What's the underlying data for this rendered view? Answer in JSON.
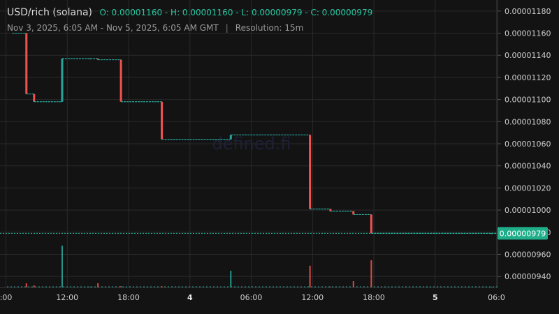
{
  "header": {
    "symbol": "USD/rich (solana)",
    "ohlc": "O: 0.00001160 - H: 0.00001160 - L: 0.00000979 - C: 0.00000979",
    "range": "Nov 3, 2025, 6:05 AM - Nov 5, 2025, 6:05 AM GMT",
    "separator": "|",
    "resolution": "Resolution: 15m"
  },
  "watermark": "defined.fi",
  "colors": {
    "up": "#26a69a",
    "down": "#ef5350",
    "accent": "#26c6a0",
    "background": "#131313",
    "grid": "#2a2a2a"
  },
  "chart_data": {
    "type": "candlestick",
    "price_axis": {
      "ticks": [
        "0.00001180",
        "0.00001160",
        "0.00001140",
        "0.00001120",
        "0.00001100",
        "0.00001080",
        "0.00001060",
        "0.00001040",
        "0.00001020",
        "0.00001000",
        "0.00000980",
        "0.00000960",
        "0.00000940"
      ],
      "range": [
        9.3e-06,
        1.19e-05
      ],
      "last_price_label": "0.00000979",
      "last_price": 9.79e-06
    },
    "time_axis": {
      "ticks": [
        {
          "label": ":00",
          "hour": 6,
          "bold": false
        },
        {
          "label": "12:00",
          "hour": 12,
          "bold": false
        },
        {
          "label": "18:00",
          "hour": 18,
          "bold": false
        },
        {
          "label": "4",
          "hour": 24,
          "bold": true
        },
        {
          "label": "06:00",
          "hour": 30,
          "bold": false
        },
        {
          "label": "12:00",
          "hour": 36,
          "bold": false
        },
        {
          "label": "18:00",
          "hour": 42,
          "bold": false
        },
        {
          "label": "5",
          "hour": 48,
          "bold": true
        },
        {
          "label": "06:0",
          "hour": 54,
          "bold": false
        }
      ],
      "range_hours": [
        6.1,
        54.1
      ]
    },
    "candles": [
      {
        "t": 8.0,
        "o": 1.16e-05,
        "c": 1.105e-05,
        "v": 0.1
      },
      {
        "t": 8.75,
        "o": 1.105e-05,
        "c": 1.098e-05,
        "v": 0.05
      },
      {
        "t": 11.5,
        "o": 1.098e-05,
        "c": 1.137e-05,
        "v": 1.0
      },
      {
        "t": 14.25,
        "o": 1.137e-05,
        "c": 1.137e-05,
        "v": 0.02
      },
      {
        "t": 15.0,
        "o": 1.137e-05,
        "c": 1.136e-05,
        "v": 0.1
      },
      {
        "t": 17.25,
        "o": 1.136e-05,
        "c": 1.098e-05,
        "v": 0.03
      },
      {
        "t": 21.25,
        "o": 1.098e-05,
        "c": 1.064e-05,
        "v": 0.03
      },
      {
        "t": 28.0,
        "o": 1.064e-05,
        "c": 1.068e-05,
        "v": 0.4
      },
      {
        "t": 35.75,
        "o": 1.068e-05,
        "c": 1.001e-05,
        "v": 0.52
      },
      {
        "t": 37.75,
        "o": 1.001e-05,
        "c": 9.99e-06,
        "v": 0.02
      },
      {
        "t": 40.0,
        "o": 9.99e-06,
        "c": 9.96e-06,
        "v": 0.15
      },
      {
        "t": 41.75,
        "o": 9.96e-06,
        "c": 9.79e-06,
        "v": 0.65
      },
      {
        "t": 53.5,
        "o": 9.79e-06,
        "c": 9.79e-06,
        "v": 0.01
      }
    ]
  }
}
